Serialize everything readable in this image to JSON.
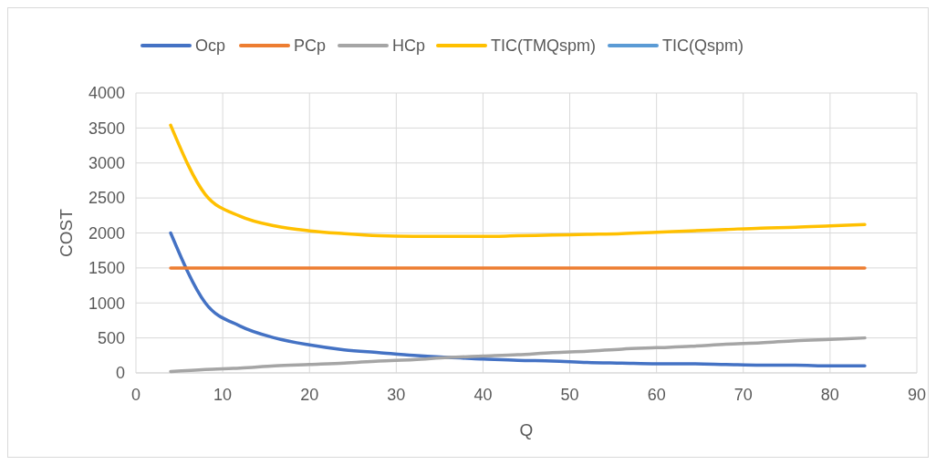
{
  "chart_data": {
    "type": "line",
    "xlabel": "Q",
    "ylabel": "COST",
    "x": [
      4,
      8,
      12,
      16,
      20,
      24,
      28,
      32,
      36,
      40,
      44,
      48,
      52,
      56,
      60,
      64,
      68,
      72,
      76,
      80,
      84
    ],
    "series": [
      {
        "name": "Ocp",
        "color": "#4472c4",
        "values": [
          2000,
          1000,
          670,
          500,
          400,
          330,
          290,
          250,
          220,
          200,
          180,
          170,
          150,
          140,
          130,
          130,
          120,
          110,
          110,
          100,
          100
        ]
      },
      {
        "name": "PCp",
        "color": "#ed7d31",
        "values": [
          1500,
          1500,
          1500,
          1500,
          1500,
          1500,
          1500,
          1500,
          1500,
          1500,
          1500,
          1500,
          1500,
          1500,
          1500,
          1500,
          1500,
          1500,
          1500,
          1500,
          1500
        ]
      },
      {
        "name": "HCp",
        "color": "#a5a5a5",
        "values": [
          20,
          50,
          70,
          100,
          120,
          140,
          170,
          190,
          220,
          240,
          260,
          290,
          310,
          340,
          360,
          380,
          410,
          430,
          460,
          480,
          500
        ]
      },
      {
        "name": "TIC(TMQspm)",
        "color": "#ffc000",
        "values": [
          3540,
          2550,
          2240,
          2100,
          2030,
          1990,
          1960,
          1950,
          1950,
          1950,
          1960,
          1970,
          1980,
          1990,
          2010,
          2030,
          2050,
          2070,
          2080,
          2100,
          2120
        ]
      },
      {
        "name": "TIC(Qspm)",
        "color": "#5b9bd5",
        "values": [
          null,
          null,
          null,
          null,
          null,
          null,
          null,
          null,
          null,
          null,
          null,
          null,
          null,
          null,
          null,
          null,
          null,
          null,
          null,
          null,
          null
        ]
      }
    ],
    "xlim": [
      0,
      90
    ],
    "xticks": [
      0,
      10,
      20,
      30,
      40,
      50,
      60,
      70,
      80,
      90
    ],
    "ylim": [
      0,
      4000
    ],
    "yticks": [
      0,
      500,
      1000,
      1500,
      2000,
      2500,
      3000,
      3500,
      4000
    ],
    "grid": true,
    "legend": "top",
    "marker": "none",
    "line_style": "solid"
  }
}
